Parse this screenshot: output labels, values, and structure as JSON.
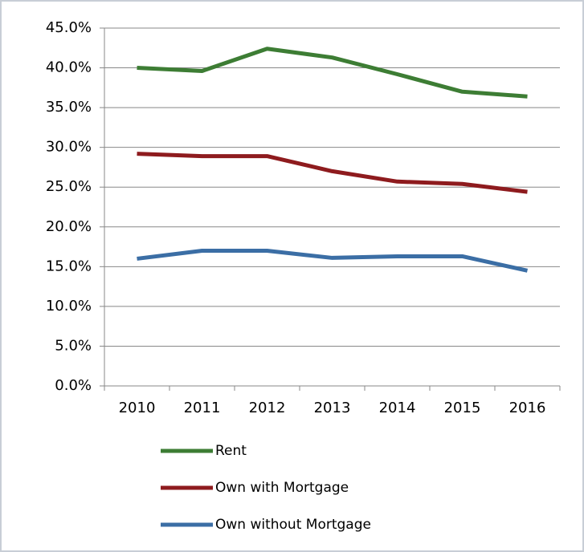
{
  "chart_data": {
    "type": "line",
    "categories": [
      "2010",
      "2011",
      "2012",
      "2013",
      "2014",
      "2015",
      "2016"
    ],
    "series": [
      {
        "name": "Rent",
        "color": "#3d7d34",
        "values": [
          40.0,
          39.6,
          42.4,
          41.3,
          39.2,
          37.0,
          36.4
        ]
      },
      {
        "name": "Own with Mortgage",
        "color": "#8e1b1e",
        "values": [
          29.2,
          28.9,
          28.9,
          27.0,
          25.7,
          25.4,
          24.4
        ]
      },
      {
        "name": "Own without Mortgage",
        "color": "#3b6ea5",
        "values": [
          16.0,
          17.0,
          17.0,
          16.1,
          16.3,
          16.3,
          14.5
        ]
      }
    ],
    "ylim": [
      0,
      45
    ],
    "yticks": [
      {
        "value": 0,
        "label": "0.0%"
      },
      {
        "value": 5,
        "label": "5.0%"
      },
      {
        "value": 10,
        "label": "10.0%"
      },
      {
        "value": 15,
        "label": "15.0%"
      },
      {
        "value": 20,
        "label": "20.0%"
      },
      {
        "value": 25,
        "label": "25.0%"
      },
      {
        "value": 30,
        "label": "30.0%"
      },
      {
        "value": 35,
        "label": "35.0%"
      },
      {
        "value": 40,
        "label": "40.0%"
      },
      {
        "value": 45,
        "label": "45.0%"
      }
    ],
    "grid": true,
    "legend": "bottom"
  }
}
